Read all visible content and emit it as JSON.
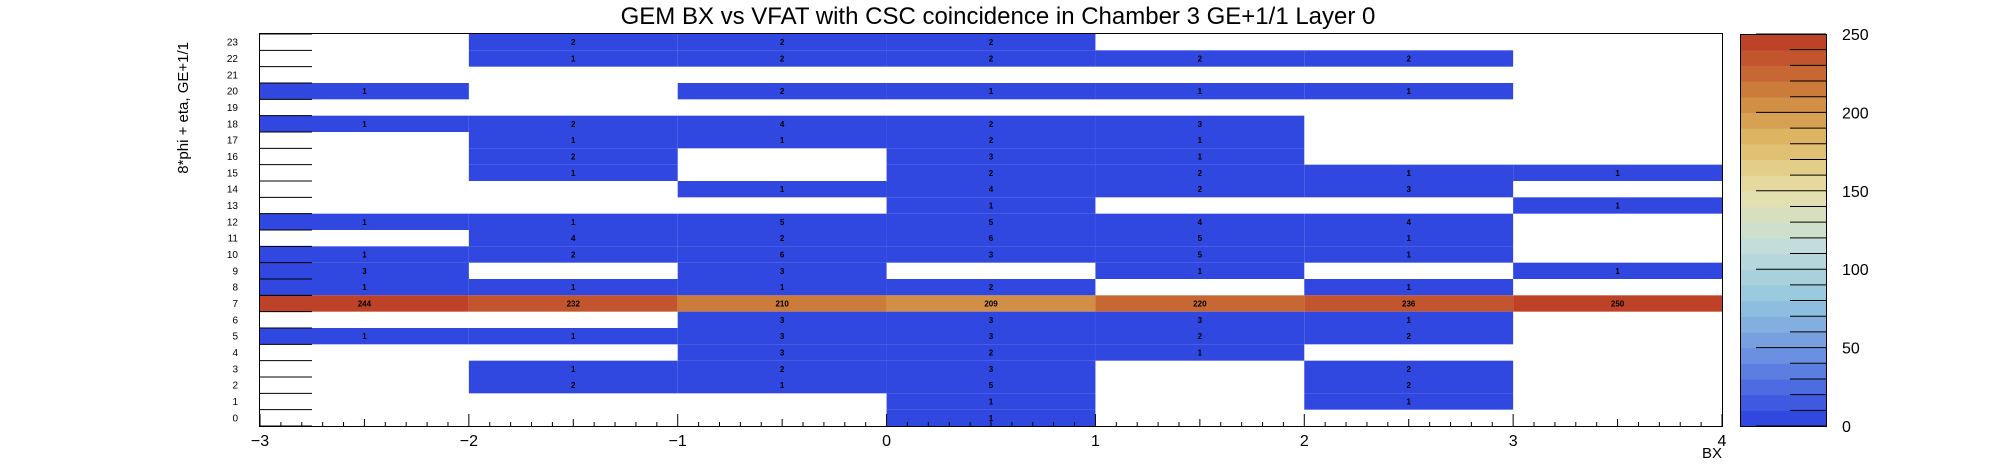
{
  "chart_data": {
    "type": "heatmap",
    "title": "GEM BX vs VFAT with CSC coincidence in Chamber 3 GE+1/1 Layer 0",
    "xlabel": "BX",
    "ylabel": "8*phi + eta, GE+1/1",
    "x_edges": [
      -3,
      -2,
      -1,
      0,
      1,
      2,
      3,
      4
    ],
    "xlim": [
      -3,
      4
    ],
    "x_ticks": [
      "−3",
      "−2",
      "−1",
      "0",
      "1",
      "2",
      "3",
      "4"
    ],
    "ylim": [
      0,
      24
    ],
    "y_ticks": [
      "0",
      "1",
      "2",
      "3",
      "4",
      "5",
      "6",
      "7",
      "8",
      "9",
      "10",
      "11",
      "12",
      "13",
      "14",
      "15",
      "16",
      "17",
      "18",
      "19",
      "20",
      "21",
      "22",
      "23"
    ],
    "colorbar": {
      "min": 0,
      "max": 250,
      "ticks": [
        "0",
        "50",
        "100",
        "150",
        "200",
        "250"
      ]
    },
    "colors": {
      "low": "#3048e0",
      "mid_high": "#d39440",
      "high": "#bf4428",
      "frame": "#000000"
    },
    "cells": [
      {
        "y": 23,
        "x": -1.5,
        "v": 2
      },
      {
        "y": 23,
        "x": -0.5,
        "v": 2
      },
      {
        "y": 23,
        "x": 0.5,
        "v": 2
      },
      {
        "y": 22,
        "x": -1.5,
        "v": 1
      },
      {
        "y": 22,
        "x": -0.5,
        "v": 2
      },
      {
        "y": 22,
        "x": 0.5,
        "v": 2
      },
      {
        "y": 22,
        "x": 1.5,
        "v": 2
      },
      {
        "y": 22,
        "x": 2.5,
        "v": 2
      },
      {
        "y": 20,
        "x": -2.5,
        "v": 1
      },
      {
        "y": 20,
        "x": -0.5,
        "v": 2
      },
      {
        "y": 20,
        "x": 0.5,
        "v": 1
      },
      {
        "y": 20,
        "x": 1.5,
        "v": 1
      },
      {
        "y": 20,
        "x": 2.5,
        "v": 1
      },
      {
        "y": 18,
        "x": -2.5,
        "v": 1
      },
      {
        "y": 18,
        "x": -1.5,
        "v": 2
      },
      {
        "y": 18,
        "x": -0.5,
        "v": 4
      },
      {
        "y": 18,
        "x": 0.5,
        "v": 2
      },
      {
        "y": 18,
        "x": 1.5,
        "v": 3
      },
      {
        "y": 17,
        "x": -1.5,
        "v": 1
      },
      {
        "y": 17,
        "x": -0.5,
        "v": 1
      },
      {
        "y": 17,
        "x": 0.5,
        "v": 2
      },
      {
        "y": 17,
        "x": 1.5,
        "v": 1
      },
      {
        "y": 16,
        "x": -1.5,
        "v": 2
      },
      {
        "y": 16,
        "x": 0.5,
        "v": 3
      },
      {
        "y": 16,
        "x": 1.5,
        "v": 1
      },
      {
        "y": 15,
        "x": -1.5,
        "v": 1
      },
      {
        "y": 15,
        "x": 0.5,
        "v": 2
      },
      {
        "y": 15,
        "x": 1.5,
        "v": 2
      },
      {
        "y": 15,
        "x": 2.5,
        "v": 1
      },
      {
        "y": 15,
        "x": 3.5,
        "v": 1
      },
      {
        "y": 14,
        "x": -0.5,
        "v": 1
      },
      {
        "y": 14,
        "x": 0.5,
        "v": 4
      },
      {
        "y": 14,
        "x": 1.5,
        "v": 2
      },
      {
        "y": 14,
        "x": 2.5,
        "v": 3
      },
      {
        "y": 13,
        "x": 0.5,
        "v": 1
      },
      {
        "y": 13,
        "x": 3.5,
        "v": 1
      },
      {
        "y": 12,
        "x": -2.5,
        "v": 1
      },
      {
        "y": 12,
        "x": -1.5,
        "v": 1
      },
      {
        "y": 12,
        "x": -0.5,
        "v": 5
      },
      {
        "y": 12,
        "x": 0.5,
        "v": 5
      },
      {
        "y": 12,
        "x": 1.5,
        "v": 4
      },
      {
        "y": 12,
        "x": 2.5,
        "v": 4
      },
      {
        "y": 11,
        "x": -1.5,
        "v": 4
      },
      {
        "y": 11,
        "x": -0.5,
        "v": 2
      },
      {
        "y": 11,
        "x": 0.5,
        "v": 6
      },
      {
        "y": 11,
        "x": 1.5,
        "v": 5
      },
      {
        "y": 11,
        "x": 2.5,
        "v": 1
      },
      {
        "y": 10,
        "x": -2.5,
        "v": 1
      },
      {
        "y": 10,
        "x": -1.5,
        "v": 2
      },
      {
        "y": 10,
        "x": -0.5,
        "v": 6
      },
      {
        "y": 10,
        "x": 0.5,
        "v": 3
      },
      {
        "y": 10,
        "x": 1.5,
        "v": 5
      },
      {
        "y": 10,
        "x": 2.5,
        "v": 1
      },
      {
        "y": 9,
        "x": -2.5,
        "v": 3
      },
      {
        "y": 9,
        "x": -0.5,
        "v": 3
      },
      {
        "y": 9,
        "x": 1.5,
        "v": 1
      },
      {
        "y": 9,
        "x": 3.5,
        "v": 1
      },
      {
        "y": 8,
        "x": -2.5,
        "v": 1
      },
      {
        "y": 8,
        "x": -1.5,
        "v": 1
      },
      {
        "y": 8,
        "x": -0.5,
        "v": 1
      },
      {
        "y": 8,
        "x": 0.5,
        "v": 2
      },
      {
        "y": 8,
        "x": 2.5,
        "v": 1
      },
      {
        "y": 7,
        "x": -2.5,
        "v": 244
      },
      {
        "y": 7,
        "x": -1.5,
        "v": 232
      },
      {
        "y": 7,
        "x": -0.5,
        "v": 210
      },
      {
        "y": 7,
        "x": 0.5,
        "v": 209
      },
      {
        "y": 7,
        "x": 1.5,
        "v": 220
      },
      {
        "y": 7,
        "x": 2.5,
        "v": 236
      },
      {
        "y": 7,
        "x": 3.5,
        "v": 250
      },
      {
        "y": 6,
        "x": -0.5,
        "v": 3
      },
      {
        "y": 6,
        "x": 0.5,
        "v": 3
      },
      {
        "y": 6,
        "x": 1.5,
        "v": 3
      },
      {
        "y": 6,
        "x": 2.5,
        "v": 1
      },
      {
        "y": 5,
        "x": -2.5,
        "v": 1
      },
      {
        "y": 5,
        "x": -1.5,
        "v": 1
      },
      {
        "y": 5,
        "x": -0.5,
        "v": 3
      },
      {
        "y": 5,
        "x": 0.5,
        "v": 3
      },
      {
        "y": 5,
        "x": 1.5,
        "v": 2
      },
      {
        "y": 5,
        "x": 2.5,
        "v": 2
      },
      {
        "y": 4,
        "x": -0.5,
        "v": 3
      },
      {
        "y": 4,
        "x": 0.5,
        "v": 2
      },
      {
        "y": 4,
        "x": 1.5,
        "v": 1
      },
      {
        "y": 3,
        "x": -1.5,
        "v": 1
      },
      {
        "y": 3,
        "x": -0.5,
        "v": 2
      },
      {
        "y": 3,
        "x": 0.5,
        "v": 3
      },
      {
        "y": 3,
        "x": 2.5,
        "v": 2
      },
      {
        "y": 2,
        "x": -1.5,
        "v": 2
      },
      {
        "y": 2,
        "x": -0.5,
        "v": 1
      },
      {
        "y": 2,
        "x": 0.5,
        "v": 5
      },
      {
        "y": 2,
        "x": 2.5,
        "v": 2
      },
      {
        "y": 1,
        "x": 0.5,
        "v": 1
      },
      {
        "y": 1,
        "x": 2.5,
        "v": 1
      },
      {
        "y": 0,
        "x": 0.5,
        "v": 1
      }
    ]
  }
}
